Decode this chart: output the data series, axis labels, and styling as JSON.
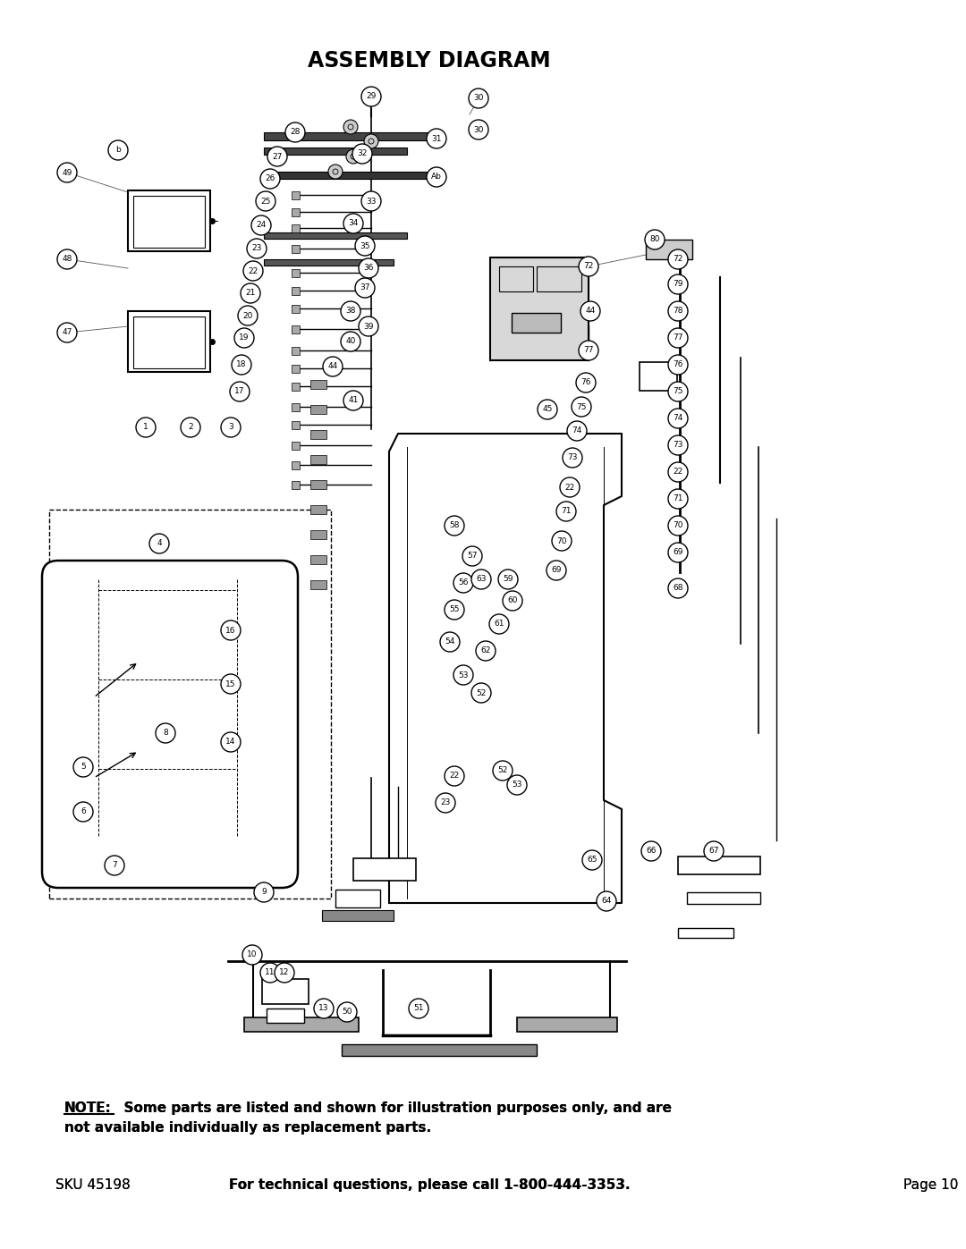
{
  "title": "ASSEMBLY DIAGRAM",
  "note_label": "NOTE:",
  "note_rest_line1": "  Some parts are listed and shown for illustration purposes only, and are",
  "note_line2": "not available individually as replacement parts.",
  "footer_sku": "SKU 45198",
  "footer_middle": "For technical questions, please call 1-800-444-3353.",
  "footer_page": "Page 10",
  "bg_color": "#ffffff",
  "text_color": "#000000",
  "fig_width": 10.8,
  "fig_height": 13.97,
  "dpi": 100
}
